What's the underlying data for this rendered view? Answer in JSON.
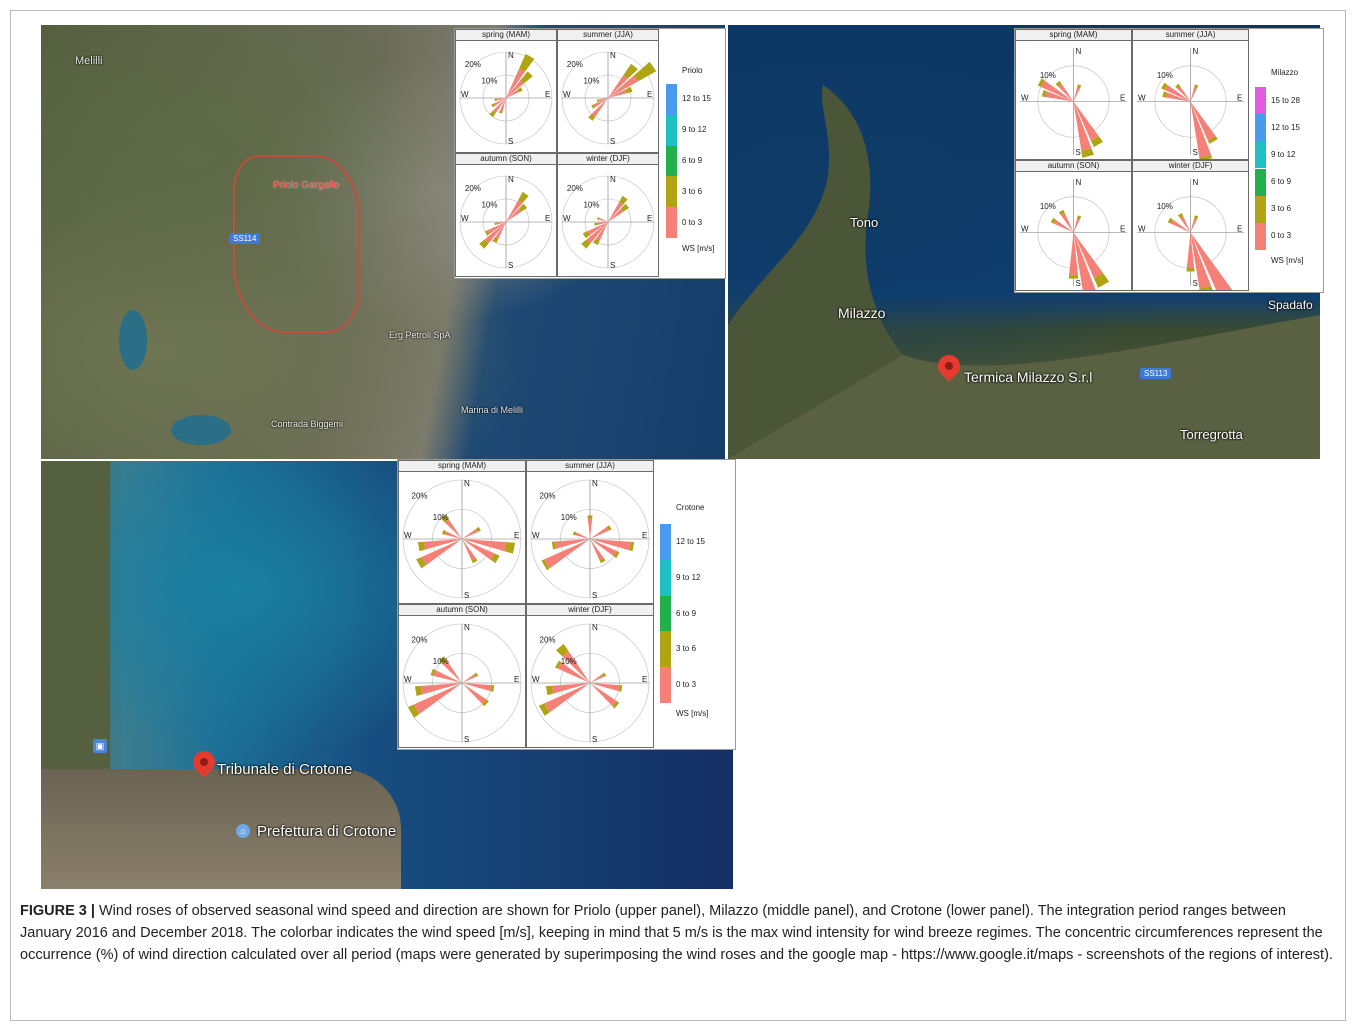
{
  "caption": {
    "label": "FIGURE 3 |",
    "text": "Wind roses of observed seasonal wind speed and direction are shown for Priolo (upper panel), Milazzo (middle panel), and Crotone (lower panel). The integration period ranges between January 2016 and December 2018. The colorbar indicates the wind speed [m/s], keeping in mind that 5 m/s is the max wind intensity for wind breeze regimes. The concentric circumferences represent the occurrence (%) of wind direction calculated over all period (maps were generated by superimposing the wind roses and the google map - https://www.google.it/maps - screenshots of the regions of interest)."
  },
  "colors": {
    "c0": "#f58078",
    "c1": "#b0a412",
    "c2": "#21b04b",
    "c3": "#1fc0c4",
    "c4": "#4a9bf0",
    "c5": "#e15adf"
  },
  "cardinals": {
    "n": "N",
    "s": "S",
    "e": "E",
    "w": "W"
  },
  "seasons": {
    "mam": "spring (MAM)",
    "jja": "summer (JJA)",
    "son": "autumn (SON)",
    "djf": "winter (DJF)"
  },
  "maps": {
    "priolo": {
      "labels": {
        "city": "Priolo Gargallo",
        "road": "SS114",
        "place1": "Melilli",
        "place2": "Contrada Biggemi",
        "place3": "Marina di Melilli",
        "place4": "Erg Petroli SpA"
      }
    },
    "milazzo": {
      "labels": {
        "tono": "Tono",
        "milazzo": "Milazzo",
        "pin": "Termica Milazzo S.r.l",
        "road": "SS113",
        "torregrotta": "Torregrotta",
        "spadafora": "Spadafo"
      }
    },
    "crotone": {
      "labels": {
        "pin": "Tribunale di Crotone",
        "poi": "Prefettura di Crotone"
      }
    }
  },
  "chart_data": [
    {
      "type": "wind-rose",
      "site": "Priolo",
      "rings": [
        "10%",
        "20%"
      ],
      "legend": {
        "title": "Priolo",
        "unit": "WS [m/s]",
        "bins": [
          "0 to 3",
          "3 to 6",
          "6 to 9",
          "9 to 12",
          "12 to 15"
        ]
      },
      "seasons": [
        {
          "key": "mam",
          "petals": [
            [
              30,
              14,
              7
            ],
            [
              45,
              10,
              5
            ],
            [
              60,
              6,
              2
            ],
            [
              200,
              6,
              1
            ],
            [
              220,
              8,
              2
            ],
            [
              240,
              6,
              1
            ],
            [
              260,
              4,
              1
            ]
          ]
        },
        {
          "key": "jja",
          "petals": [
            [
              40,
              12,
              6
            ],
            [
              55,
              15,
              9
            ],
            [
              70,
              8,
              3
            ],
            [
              220,
              10,
              2
            ],
            [
              240,
              7,
              1
            ],
            [
              255,
              4,
              1
            ]
          ]
        },
        {
          "key": "son",
          "petals": [
            [
              35,
              11,
              4
            ],
            [
              50,
              8,
              3
            ],
            [
              210,
              8,
              2
            ],
            [
              225,
              12,
              3
            ],
            [
              240,
              9,
              1
            ],
            [
              260,
              4,
              1
            ]
          ]
        },
        {
          "key": "djf",
          "petals": [
            [
              35,
              10,
              3
            ],
            [
              50,
              8,
              3
            ],
            [
              210,
              9,
              2
            ],
            [
              225,
              12,
              3
            ],
            [
              240,
              10,
              2
            ],
            [
              260,
              5,
              1
            ],
            [
              290,
              4,
              1
            ]
          ]
        }
      ]
    },
    {
      "type": "wind-rose",
      "site": "Milazzo",
      "rings": [
        "10%"
      ],
      "legend": {
        "title": "Milazzo",
        "unit": "WS [m/s]",
        "bins": [
          "0 to 3",
          "3 to 6",
          "6 to 9",
          "9 to 12",
          "12 to 15",
          "15 to 28"
        ]
      },
      "seasons": [
        {
          "key": "mam",
          "petals": [
            [
              150,
              12,
              2
            ],
            [
              165,
              14,
              2
            ],
            [
              300,
              10,
              1
            ],
            [
              285,
              8,
              1
            ],
            [
              320,
              6,
              1
            ],
            [
              20,
              4,
              1
            ]
          ]
        },
        {
          "key": "jja",
          "petals": [
            [
              165,
              16,
              1
            ],
            [
              150,
              12,
              1
            ],
            [
              300,
              8,
              1
            ],
            [
              285,
              7,
              1
            ],
            [
              320,
              5,
              1
            ],
            [
              20,
              4,
              1
            ]
          ]
        },
        {
          "key": "son",
          "petals": [
            [
              165,
              20,
              3
            ],
            [
              150,
              14,
              3
            ],
            [
              180,
              12,
              1
            ],
            [
              300,
              6,
              1
            ],
            [
              330,
              6,
              1
            ],
            [
              20,
              4,
              1
            ]
          ]
        },
        {
          "key": "djf",
          "petals": [
            [
              150,
              20,
              4
            ],
            [
              165,
              16,
              3
            ],
            [
              180,
              10,
              1
            ],
            [
              300,
              6,
              1
            ],
            [
              330,
              5,
              1
            ],
            [
              20,
              4,
              1
            ]
          ]
        }
      ]
    },
    {
      "type": "wind-rose",
      "site": "Crotone",
      "rings": [
        "10%",
        "20%"
      ],
      "legend": {
        "title": "Crotone",
        "unit": "WS [m/s]",
        "bins": [
          "0 to 3",
          "3 to 6",
          "6 to 9",
          "9 to 12",
          "12 to 15"
        ]
      },
      "seasons": [
        {
          "key": "mam",
          "petals": [
            [
              100,
              15,
              3
            ],
            [
              120,
              12,
              2
            ],
            [
              240,
              15,
              2
            ],
            [
              260,
              13,
              2
            ],
            [
              290,
              6,
              1
            ],
            [
              320,
              8,
              2
            ],
            [
              60,
              6,
              1
            ],
            [
              150,
              8,
              1
            ]
          ]
        },
        {
          "key": "jja",
          "petals": [
            [
              100,
              14,
              1
            ],
            [
              120,
              10,
              1
            ],
            [
              240,
              17,
              1
            ],
            [
              260,
              12,
              1
            ],
            [
              290,
              5,
              1
            ],
            [
              0,
              7,
              1
            ],
            [
              60,
              7,
              1
            ],
            [
              150,
              8,
              1
            ]
          ]
        },
        {
          "key": "son",
          "petals": [
            [
              240,
              18,
              2
            ],
            [
              260,
              14,
              2
            ],
            [
              290,
              10,
              1
            ],
            [
              320,
              9,
              2
            ],
            [
              100,
              10,
              1
            ],
            [
              130,
              10,
              1
            ],
            [
              60,
              5,
              1
            ]
          ]
        },
        {
          "key": "djf",
          "petals": [
            [
              240,
              17,
              2
            ],
            [
              260,
              13,
              2
            ],
            [
              300,
              12,
              1
            ],
            [
              320,
              13,
              3
            ],
            [
              100,
              10,
              1
            ],
            [
              130,
              11,
              1
            ],
            [
              60,
              5,
              1
            ]
          ]
        }
      ]
    }
  ]
}
